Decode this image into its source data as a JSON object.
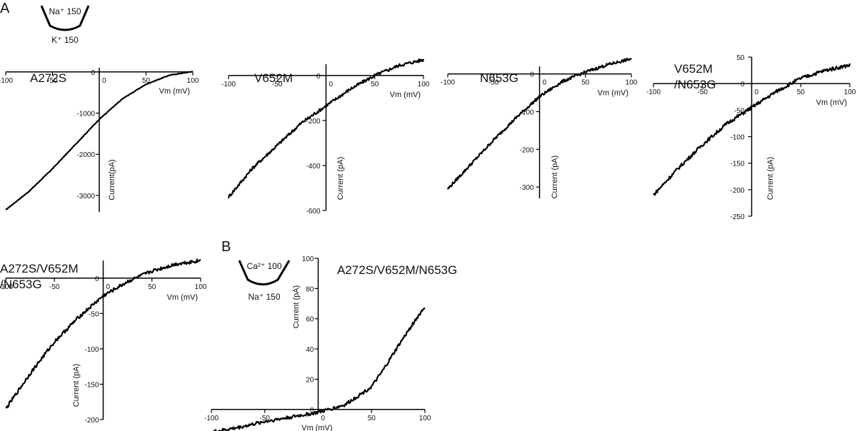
{
  "panel_labels": {
    "a": "A",
    "b": "B"
  },
  "conditions": {
    "a": {
      "top": "Na⁺ 150",
      "bottom": "K⁺ 150"
    },
    "b": {
      "top": "Ca²⁺ 100",
      "bottom": "Na⁺ 150"
    }
  },
  "colors": {
    "trace": "#000000",
    "axes": "#000000",
    "background": "#ffffff"
  },
  "chart_data": [
    {
      "type": "line",
      "title": "A272S",
      "xlabel": "Vm (mV)",
      "ylabel": "Current(pA)",
      "xlim": [
        -100,
        100
      ],
      "ylim": [
        -3400,
        100
      ],
      "xticks": [
        -100,
        -50,
        0,
        50,
        100
      ],
      "yticks": [
        0,
        -1000,
        -2000,
        -3000
      ],
      "x": [
        -100,
        -75,
        -50,
        -25,
        0,
        25,
        50,
        75,
        100
      ],
      "y": [
        -3350,
        -2900,
        -2350,
        -1750,
        -1150,
        -650,
        -300,
        -80,
        10
      ]
    },
    {
      "type": "line",
      "title": "V652M",
      "xlabel": "Vm (mV)",
      "ylabel": "Current (pA)",
      "xlim": [
        -100,
        100
      ],
      "ylim": [
        -600,
        50
      ],
      "xticks": [
        -100,
        -50,
        0,
        50,
        100
      ],
      "yticks": [
        0,
        -200,
        -400,
        -600
      ],
      "x": [
        -100,
        -75,
        -50,
        -25,
        0,
        25,
        50,
        75,
        100
      ],
      "y": [
        -540,
        -410,
        -310,
        -210,
        -135,
        -60,
        0,
        45,
        70
      ]
    },
    {
      "type": "line",
      "title": "N653G",
      "xlabel": "Vm (mV)",
      "ylabel": "Current (pA)",
      "xlim": [
        -100,
        100
      ],
      "ylim": [
        -330,
        20
      ],
      "xticks": [
        -100,
        -50,
        0,
        50,
        100
      ],
      "yticks": [
        0,
        -100,
        -200,
        -300
      ],
      "x": [
        -100,
        -75,
        -50,
        -25,
        0,
        25,
        50,
        75,
        100
      ],
      "y": [
        -305,
        -240,
        -175,
        -115,
        -60,
        -20,
        5,
        25,
        40
      ]
    },
    {
      "type": "line",
      "title": "V652M /N653G",
      "xlabel": "Vm (mV)",
      "ylabel": "Current (pA)",
      "xlim": [
        -100,
        100
      ],
      "ylim": [
        -250,
        50
      ],
      "xticks": [
        -100,
        -50,
        0,
        50,
        100
      ],
      "yticks": [
        50,
        0,
        -50,
        -100,
        -150,
        -200,
        -250
      ],
      "x": [
        -100,
        -75,
        -50,
        -25,
        0,
        25,
        50,
        75,
        100
      ],
      "y": [
        -210,
        -160,
        -115,
        -75,
        -45,
        -15,
        10,
        25,
        35
      ]
    },
    {
      "type": "line",
      "title": "A272S/V652M /N653G",
      "xlabel": "Vm (mV)",
      "ylabel": "Current (pA)",
      "xlim": [
        -100,
        100
      ],
      "ylim": [
        -200,
        25
      ],
      "xticks": [
        -100,
        -50,
        0,
        50,
        100
      ],
      "yticks": [
        0,
        -50,
        -100,
        -150,
        -200
      ],
      "x": [
        -100,
        -75,
        -50,
        -25,
        0,
        25,
        50,
        75,
        100
      ],
      "y": [
        -185,
        -135,
        -90,
        -55,
        -25,
        -5,
        10,
        20,
        25
      ]
    },
    {
      "type": "line",
      "title": "A272S/V652M/N653G",
      "xlabel": "Vm (mV)",
      "ylabel": "Current (pA)",
      "xlim": [
        -100,
        100
      ],
      "ylim": [
        -2,
        100
      ],
      "xticks": [
        -100,
        -50,
        0,
        50,
        100
      ],
      "yticks": [
        0,
        20,
        40,
        60,
        80,
        100
      ],
      "x": [
        -100,
        -75,
        -50,
        -25,
        0,
        25,
        50,
        60,
        75,
        90,
        100
      ],
      "y": [
        -15,
        -12,
        -8,
        -5,
        -2,
        3,
        15,
        25,
        42,
        58,
        68
      ]
    }
  ]
}
